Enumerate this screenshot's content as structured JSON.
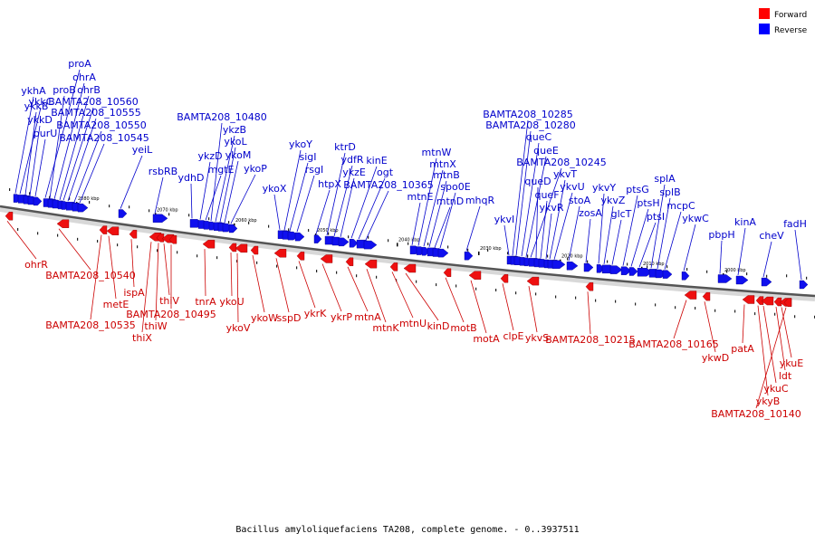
{
  "legend": {
    "forward": {
      "label": "Forward",
      "color": "#ff0000"
    },
    "reverse": {
      "label": "Reverse",
      "color": "#0000ff"
    }
  },
  "caption": "Bacillus amyloliquefaciens TA208, complete genome. - 0..3937511",
  "kbp_ticks": [
    "2080 kbp",
    "2070 kbp",
    "2060 kbp",
    "2050 kbp",
    "2040 kbp",
    "2030 kbp",
    "2020 kbp",
    "2010 kbp",
    "2000 kbp"
  ],
  "reverse_genes": [
    "ykhA",
    "ykkC",
    "ykkB",
    "ykkD",
    "purU",
    "proA",
    "proB",
    "ohrA",
    "ohrB",
    "BAMTA208_10560",
    "BAMTA208_10555",
    "BAMTA208_10550",
    "BAMTA208_10545",
    "yeiL",
    "rsbRB",
    "ydhD",
    "ykzD",
    "mgtE",
    "BAMTA208_10480",
    "ykzB",
    "ykoL",
    "ykoM",
    "ykoP",
    "ykoX",
    "ykoY",
    "sigI",
    "rsgI",
    "htpX",
    "ktrD",
    "ydfR",
    "ykzE",
    "kinE",
    "ogt",
    "BAMTA208_10365",
    "mtnE",
    "mtnW",
    "mtnX",
    "mtnB",
    "mtnD",
    "spo0E",
    "mhqR",
    "ykvI",
    "BAMTA208_10285",
    "BAMTA208_10280",
    "queC",
    "queE",
    "BAMTA208_10245",
    "queD",
    "queF",
    "ykvR",
    "ykvT",
    "ykvU",
    "stoA",
    "zosA",
    "ykvY",
    "ykvZ",
    "glcT",
    "ptsG",
    "ptsH",
    "ptsI",
    "splA",
    "splB",
    "mcpC",
    "ykwC",
    "pbpH",
    "kinA",
    "cheV",
    "fadH"
  ],
  "forward_genes": [
    "ohrR",
    "BAMTA208_10540",
    "BAMTA208_10535",
    "metE",
    "ispA",
    "thiX",
    "thiW",
    "thiV",
    "BAMTA208_10495",
    "tnrA",
    "ykoU",
    "ykoV",
    "ykoW",
    "sspD",
    "ykrK",
    "ykrP",
    "mtnA",
    "mtnK",
    "mtnU",
    "kinD",
    "motB",
    "motA",
    "clpE",
    "ykvS",
    "BAMTA208_10215",
    "BAMTA208_10165",
    "ykwD",
    "patA",
    "ykyB",
    "ykuC",
    "ldt",
    "ykuE",
    "BAMTA208_10140"
  ]
}
